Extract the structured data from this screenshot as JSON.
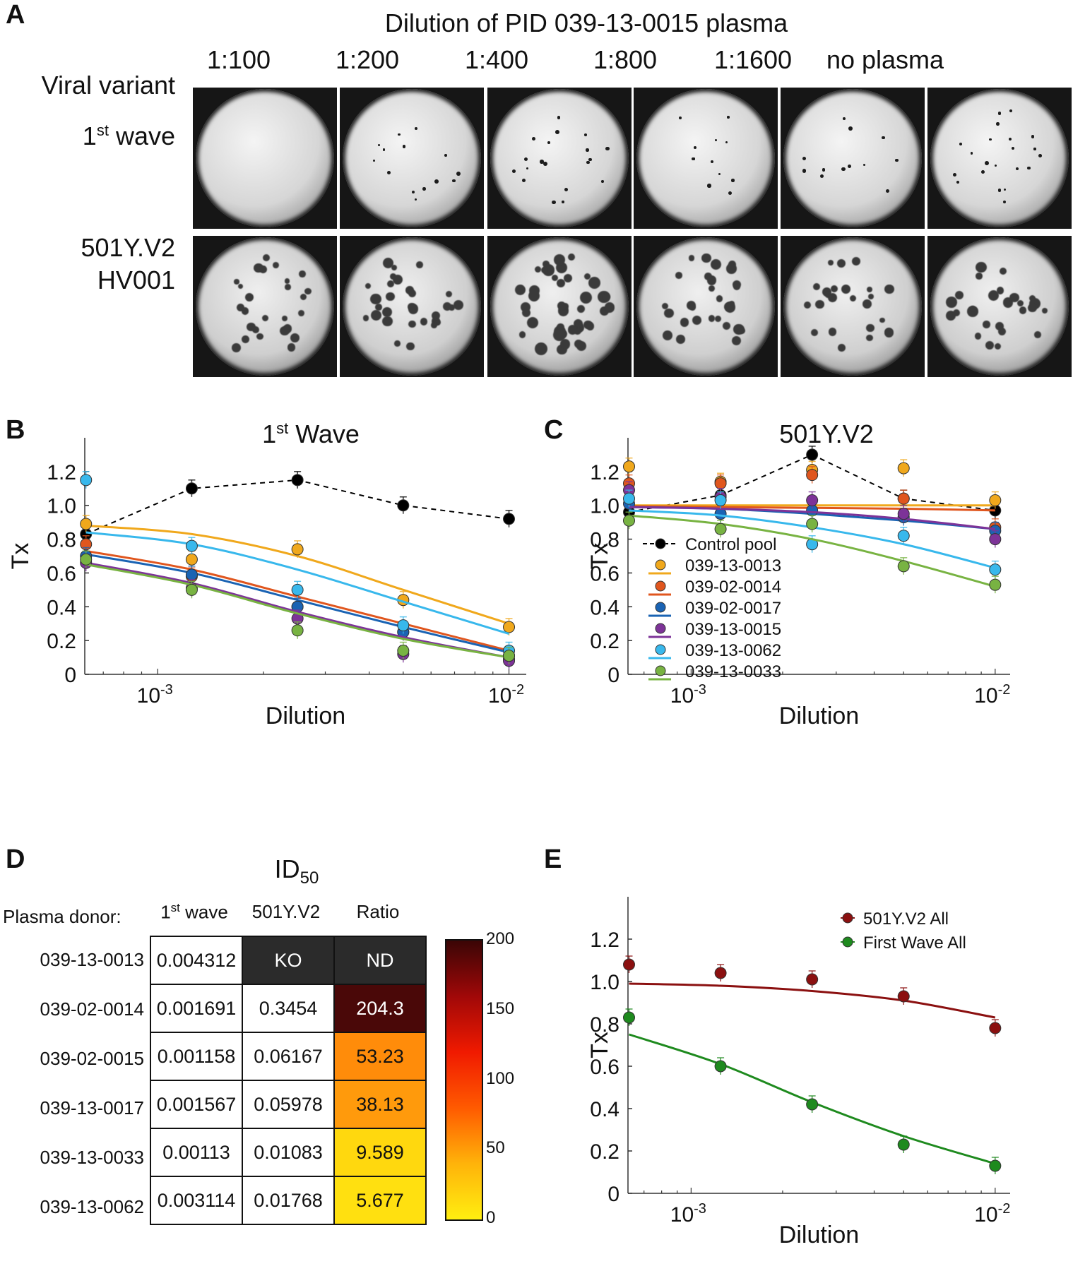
{
  "panels": {
    "a": "A",
    "b": "B",
    "c": "C",
    "d": "D",
    "e": "E"
  },
  "panel_a": {
    "title": "Dilution of PID 039-13-0015 plasma",
    "columns": [
      "1:100",
      "1:200",
      "1:400",
      "1:800",
      "1:1600",
      "no plasma"
    ],
    "row_header": "Viral variant",
    "row1_label": "1",
    "row1_sup": "st",
    "row1_suffix": " wave",
    "row2_line1": "501Y.V2",
    "row2_line2": "HV001"
  },
  "chart_data": [
    {
      "panel": "B",
      "type": "line",
      "title_main": "1",
      "title_sup": "st",
      "title_suffix": " Wave",
      "xlabel": "Dilution",
      "ylabel": "Tx",
      "xscale": "log",
      "xlim": [
        0.00062,
        0.0112
      ],
      "ylim": [
        0,
        1.4
      ],
      "x_ticks": [
        {
          "base": "10",
          "exp": "-3",
          "value": 0.001
        },
        {
          "base": "10",
          "exp": "-2",
          "value": 0.01
        }
      ],
      "y_ticks": [
        "0",
        "0.2",
        "0.4",
        "0.6",
        "0.8",
        "1.0",
        "1.2"
      ],
      "x": [
        0.000625,
        0.00125,
        0.0025,
        0.005,
        0.01
      ],
      "series": [
        {
          "name": "Control pool",
          "color": "#000000",
          "values": [
            0.83,
            1.1,
            1.15,
            1.0,
            0.92
          ],
          "dashed": true
        },
        {
          "name": "039-13-0013",
          "color": "#f0a81c",
          "values": [
            0.89,
            0.68,
            0.74,
            0.44,
            0.28
          ],
          "fit": [
            0.88,
            0.83,
            0.7,
            0.5,
            0.3
          ]
        },
        {
          "name": "039-02-0014",
          "color": "#e0561e",
          "values": [
            0.77,
            0.58,
            0.4,
            0.25,
            0.11
          ],
          "fit": [
            0.73,
            0.62,
            0.46,
            0.3,
            0.14
          ]
        },
        {
          "name": "039-02-0017",
          "color": "#1a63b3",
          "values": [
            0.7,
            0.59,
            0.4,
            0.25,
            0.09
          ],
          "fit": [
            0.71,
            0.6,
            0.44,
            0.28,
            0.13
          ]
        },
        {
          "name": "039-13-0015",
          "color": "#7d3398",
          "values": [
            0.66,
            0.51,
            0.33,
            0.12,
            0.08
          ],
          "fit": [
            0.66,
            0.54,
            0.37,
            0.22,
            0.1
          ]
        },
        {
          "name": "039-13-0062",
          "color": "#38b8ec",
          "values": [
            1.15,
            0.76,
            0.5,
            0.29,
            0.14
          ],
          "fit": [
            0.84,
            0.77,
            0.62,
            0.43,
            0.24
          ]
        },
        {
          "name": "039-13-0033",
          "color": "#78b342",
          "values": [
            0.68,
            0.5,
            0.26,
            0.14,
            0.11
          ],
          "fit": [
            0.65,
            0.53,
            0.36,
            0.21,
            0.1
          ]
        }
      ]
    },
    {
      "panel": "C",
      "type": "line",
      "title": "501Y.V2",
      "xlabel": "Dilution",
      "ylabel": "Tx",
      "xscale": "log",
      "xlim": [
        0.00062,
        0.0112
      ],
      "ylim": [
        0,
        1.4
      ],
      "x_ticks": [
        {
          "base": "10",
          "exp": "-3",
          "value": 0.001
        },
        {
          "base": "10",
          "exp": "-2",
          "value": 0.01
        }
      ],
      "y_ticks": [
        "0",
        "0.2",
        "0.4",
        "0.6",
        "0.8",
        "1.0",
        "1.2"
      ],
      "legend_position": "lower-left",
      "x": [
        0.000625,
        0.00125,
        0.0025,
        0.005,
        0.01
      ],
      "series": [
        {
          "name": "Control pool",
          "color": "#000000",
          "values": [
            0.96,
            1.06,
            1.3,
            1.04,
            0.97
          ],
          "dashed": true
        },
        {
          "name": "039-13-0013",
          "color": "#f0a81c",
          "values": [
            1.23,
            1.14,
            1.21,
            1.22,
            1.03
          ],
          "fit": [
            1.0,
            1.0,
            1.0,
            1.0,
            1.0
          ]
        },
        {
          "name": "039-02-0014",
          "color": "#e0561e",
          "values": [
            1.13,
            1.13,
            1.18,
            1.04,
            0.87
          ],
          "fit": [
            0.995,
            0.99,
            0.985,
            0.98,
            0.97
          ]
        },
        {
          "name": "039-02-0017",
          "color": "#1a63b3",
          "values": [
            1.01,
            0.95,
            0.97,
            0.93,
            0.85
          ],
          "fit": [
            0.99,
            0.98,
            0.95,
            0.91,
            0.86
          ]
        },
        {
          "name": "039-13-0015",
          "color": "#7d3398",
          "values": [
            1.09,
            1.05,
            1.03,
            0.95,
            0.8
          ],
          "fit": [
            0.99,
            0.98,
            0.96,
            0.92,
            0.86
          ]
        },
        {
          "name": "039-13-0062",
          "color": "#38b8ec",
          "values": [
            1.04,
            1.03,
            0.77,
            0.82,
            0.62
          ],
          "fit": [
            0.97,
            0.94,
            0.87,
            0.77,
            0.63
          ]
        },
        {
          "name": "039-13-0033",
          "color": "#78b342",
          "values": [
            0.91,
            0.86,
            0.89,
            0.64,
            0.53
          ],
          "fit": [
            0.94,
            0.89,
            0.8,
            0.67,
            0.52
          ]
        }
      ]
    },
    {
      "panel": "E",
      "type": "line",
      "xlabel": "Dilution",
      "ylabel": "Tx",
      "xscale": "log",
      "xlim": [
        0.00062,
        0.0112
      ],
      "ylim": [
        0,
        1.4
      ],
      "x_ticks": [
        {
          "base": "10",
          "exp": "-3",
          "value": 0.001
        },
        {
          "base": "10",
          "exp": "-2",
          "value": 0.01
        }
      ],
      "y_ticks": [
        "0",
        "0.2",
        "0.4",
        "0.6",
        "0.8",
        "1.0",
        "1.2"
      ],
      "legend_position": "top-right",
      "x": [
        0.000625,
        0.00125,
        0.0025,
        0.005,
        0.01
      ],
      "series": [
        {
          "name": "501Y.V2 All",
          "color": "#8b1010",
          "values": [
            1.08,
            1.04,
            1.01,
            0.93,
            0.78
          ],
          "fit": [
            0.99,
            0.98,
            0.955,
            0.91,
            0.83
          ]
        },
        {
          "name": "First Wave All",
          "color": "#1e8a1e",
          "values": [
            0.83,
            0.6,
            0.42,
            0.23,
            0.13
          ],
          "fit": [
            0.75,
            0.61,
            0.43,
            0.27,
            0.14
          ]
        }
      ]
    }
  ],
  "panel_d": {
    "title_main": "ID",
    "title_sub": "50",
    "donor_header": "Plasma donor:",
    "col_headers": [
      {
        "main": "1",
        "sup": "st",
        "suffix": " wave"
      },
      {
        "main": "501Y.V2",
        "sup": "",
        "suffix": ""
      },
      {
        "main": "Ratio",
        "sup": "",
        "suffix": ""
      }
    ],
    "rows": [
      {
        "donor": "039-13-0013",
        "first_wave": "0.004312",
        "variant": "KO",
        "ratio": "ND",
        "ratio_color": "#2b2b2b"
      },
      {
        "donor": "039-02-0014",
        "first_wave": "0.001691",
        "variant": "0.3454",
        "ratio": "204.3",
        "ratio_color": "#4a0808"
      },
      {
        "donor": "039-02-0015",
        "first_wave": "0.001158",
        "variant": "0.06167",
        "ratio": "53.23",
        "ratio_color": "#ff8c0a"
      },
      {
        "donor": "039-13-0017",
        "first_wave": "0.001567",
        "variant": "0.05978",
        "ratio": "38.13",
        "ratio_color": "#ff9a0c"
      },
      {
        "donor": "039-13-0033",
        "first_wave": "0.00113",
        "variant": "0.01083",
        "ratio": "9.589",
        "ratio_color": "#ffd80e"
      },
      {
        "donor": "039-13-0062",
        "first_wave": "0.003114",
        "variant": "0.01768",
        "ratio": "5.677",
        "ratio_color": "#ffe010"
      }
    ],
    "colorbar": {
      "ticks": [
        "200",
        "150",
        "100",
        "50",
        "0"
      ],
      "min": 0,
      "max": 200,
      "colors": [
        "#ffee10",
        "#ffb30a",
        "#ff5a00",
        "#f01a00",
        "#a00808",
        "#3a0505"
      ]
    }
  }
}
